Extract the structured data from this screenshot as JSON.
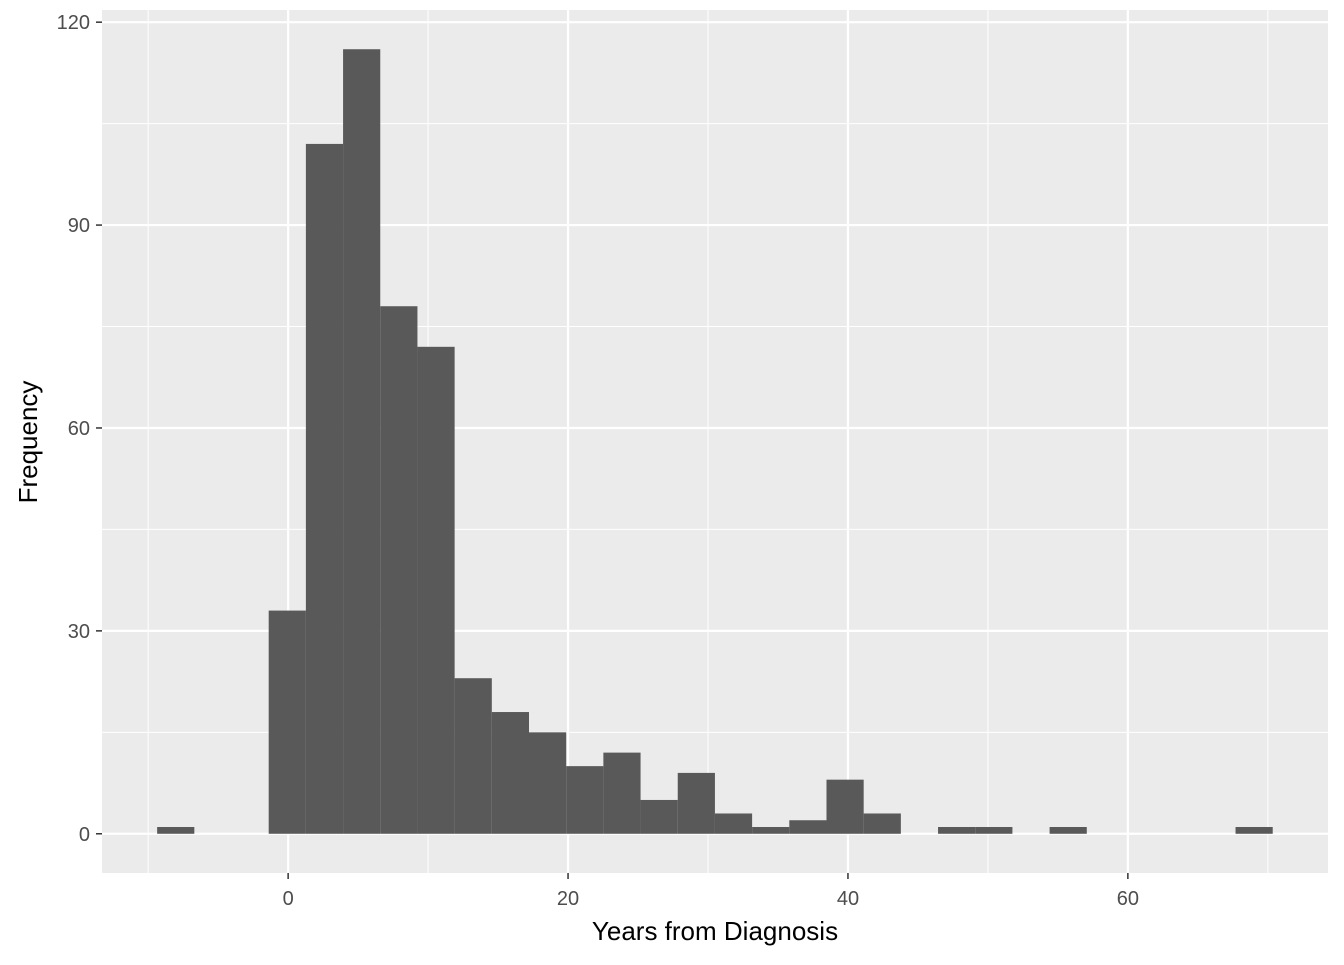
{
  "chart_data": {
    "type": "bar",
    "subtype": "histogram",
    "xlabel": "Years from Diagnosis",
    "ylabel": "Frequency",
    "xlim": [
      -13.3,
      74.3
    ],
    "ylim": [
      -5.8,
      121.8
    ],
    "x_ticks": [
      0,
      20,
      40,
      60
    ],
    "y_ticks": [
      0,
      30,
      60,
      90,
      120
    ],
    "grid": true,
    "bin_start": -9.36,
    "bin_width": 2.657,
    "counts": [
      1,
      0,
      0,
      33,
      102,
      116,
      78,
      72,
      23,
      18,
      15,
      10,
      12,
      5,
      9,
      3,
      1,
      2,
      8,
      3,
      0,
      1,
      1,
      0,
      1,
      0,
      0,
      0,
      0,
      1
    ],
    "colors": {
      "bar": "#595959",
      "panel": "#EBEBEB",
      "grid": "#FFFFFF",
      "text": "#4D4D4D"
    }
  }
}
